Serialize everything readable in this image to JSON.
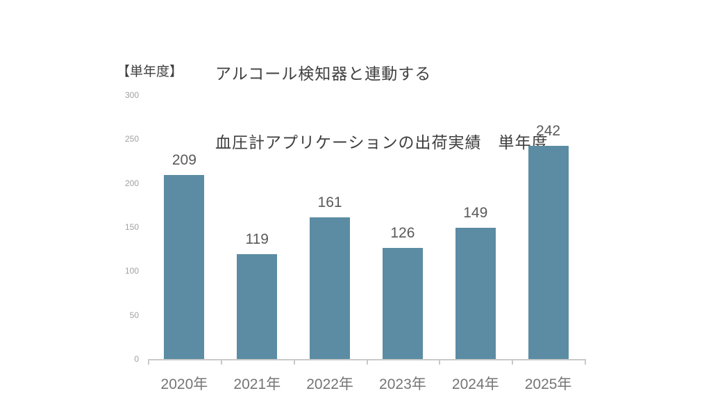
{
  "header": {
    "title_line1": "アルコール検知器と連動する",
    "title_line2": "血圧計アプリケーションの出荷実績　単年度",
    "unit_label": "【単年度】"
  },
  "chart_data": {
    "type": "bar",
    "title": "アルコール検知器と連動する 血圧計アプリケーションの出荷実績　単年度",
    "unit_label": "【単年度】",
    "categories": [
      "2020年",
      "2021年",
      "2022年",
      "2023年",
      "2024年",
      "2025年"
    ],
    "values": [
      209,
      119,
      161,
      126,
      149,
      242
    ],
    "data_labels": [
      209,
      119,
      161,
      126,
      149,
      242
    ],
    "xlabel": "",
    "ylabel": "",
    "ylim": [
      0,
      300
    ],
    "y_ticks": [
      0,
      50,
      100,
      150,
      200,
      250,
      300
    ],
    "grid": false,
    "legend": "none",
    "colors": {
      "bar": "#5b8ca3",
      "title_text": "#3f3f3f",
      "data_label_text": "#595959",
      "y_tick_text": "#a0a0a0",
      "x_tick_text": "#757575",
      "axis_line": "#c9c9c9"
    }
  }
}
